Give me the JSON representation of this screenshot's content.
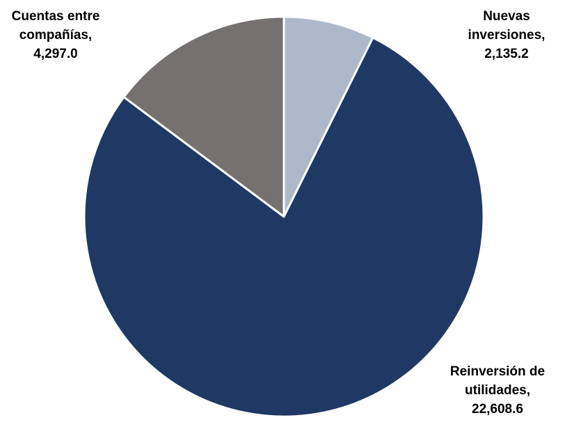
{
  "chart_data": {
    "type": "pie",
    "title": "",
    "start_angle_deg": 0,
    "direction": "clockwise",
    "slices": [
      {
        "label": "Nuevas inversiones",
        "label_lines": [
          "Nuevas",
          "inversiones,",
          "2,135.2"
        ],
        "value": 2135.2,
        "color": "#adb9ca"
      },
      {
        "label": "Reinversión de utilidades",
        "label_lines": [
          "Reinversión de",
          "utilidades,",
          "22,608.6"
        ],
        "value": 22608.6,
        "color": "#203864"
      },
      {
        "label": "Cuentas entre compañías",
        "label_lines": [
          "Cuentas entre",
          "compañías,",
          "4,297.0"
        ],
        "value": 4297.0,
        "color": "#767171"
      }
    ]
  }
}
